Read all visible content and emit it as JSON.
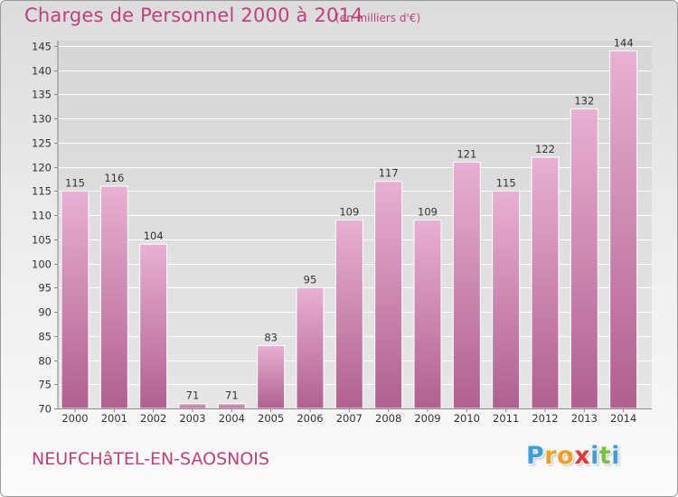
{
  "title": "Charges de Personnel 2000 à 2014",
  "subtitle": "(en milliers d'€)",
  "commune": "NEUFCHâTEL-EN-SAOSNOIS",
  "logo": {
    "letters": [
      "P",
      "r",
      "o",
      "x",
      "i",
      "t",
      "i"
    ],
    "colors": [
      "#3aa0dc",
      "#f0a020",
      "#f0a020",
      "#e03a3a",
      "#3aa0dc",
      "#7ac043",
      "#3aa0dc"
    ]
  },
  "colors": {
    "title": "#c0407a",
    "bar_top": "#e8b0d2",
    "bar_bottom": "#b0608e",
    "grid": "#ffffff",
    "axis_text": "#333333"
  },
  "chart_data": {
    "type": "bar",
    "categories": [
      "2000",
      "2001",
      "2002",
      "2003",
      "2004",
      "2005",
      "2006",
      "2007",
      "2008",
      "2009",
      "2010",
      "2011",
      "2012",
      "2013",
      "2014"
    ],
    "values": [
      115,
      116,
      104,
      71,
      71,
      83,
      95,
      109,
      117,
      109,
      121,
      115,
      122,
      132,
      144
    ],
    "ylim": [
      70,
      145
    ],
    "yticks": [
      70,
      75,
      80,
      85,
      90,
      95,
      100,
      105,
      110,
      115,
      120,
      125,
      130,
      135,
      140,
      145
    ],
    "grid": true,
    "data_labels": true
  }
}
